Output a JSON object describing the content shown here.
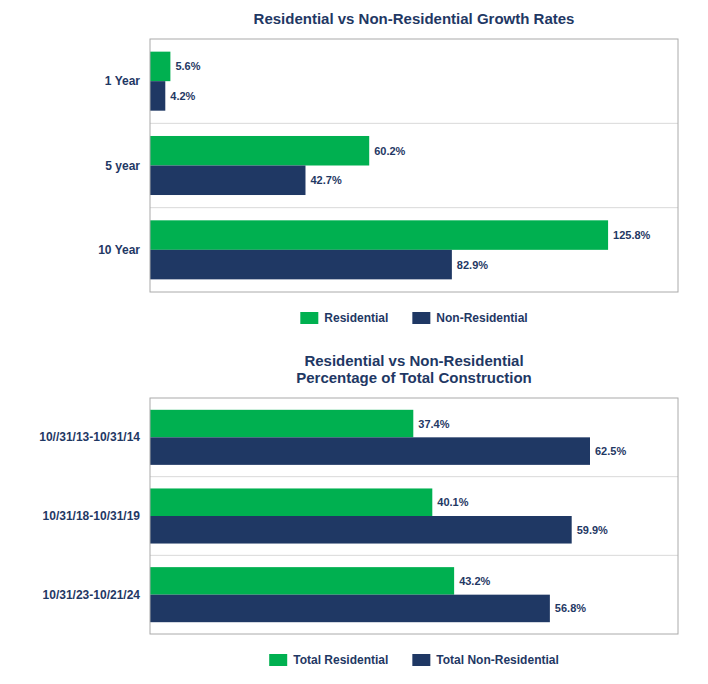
{
  "chart_data": [
    {
      "type": "bar",
      "orientation": "horizontal",
      "title": "Residential vs Non-Residential Growth Rates",
      "categories": [
        "10 Year",
        "5 year",
        "1 Year"
      ],
      "series": [
        {
          "name": "Residential",
          "color": "#00B050",
          "values": [
            125.8,
            60.2,
            5.6
          ],
          "value_labels": [
            "125.8%",
            "60.2%",
            "5.6%"
          ]
        },
        {
          "name": "Non-Residential",
          "color": "#1F3864",
          "values": [
            82.9,
            42.7,
            4.2
          ],
          "value_labels": [
            "82.9%",
            "42.7%",
            "4.2%"
          ]
        }
      ],
      "xlim": [
        0,
        145
      ],
      "tick_labels": "y",
      "data_labels": true,
      "legend": "bottom"
    },
    {
      "type": "bar",
      "orientation": "horizontal",
      "title": "Residential vs Non-Residential\nPercentage of Total Construction",
      "categories": [
        "10/31/23-10/21/24",
        "10/31/18-10/31/19",
        "10//31/13-10/31/14"
      ],
      "series": [
        {
          "name": "Total Residential",
          "color": "#00B050",
          "values": [
            43.2,
            40.1,
            37.4
          ],
          "value_labels": [
            "43.2%",
            "40.1%",
            "37.4%"
          ]
        },
        {
          "name": "Total Non-Residential",
          "color": "#1F3864",
          "values": [
            56.8,
            59.9,
            62.5
          ],
          "value_labels": [
            "56.8%",
            "59.9%",
            "62.5%"
          ]
        }
      ],
      "xlim": [
        0,
        75
      ],
      "tick_labels": "y",
      "data_labels": true,
      "legend": "bottom"
    }
  ]
}
